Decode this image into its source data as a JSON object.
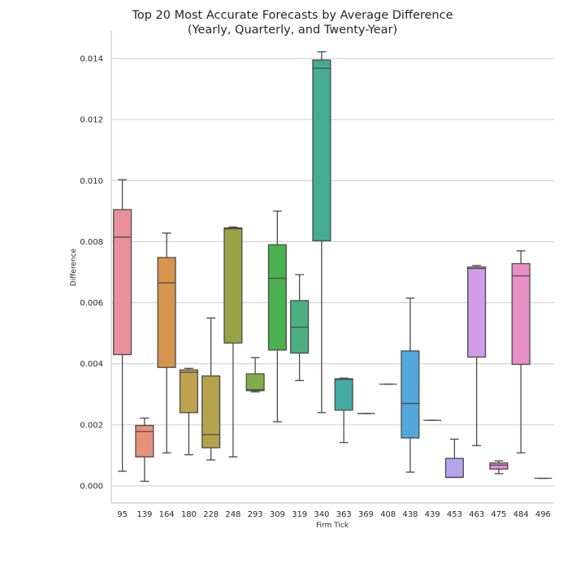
{
  "chart_data": {
    "type": "box",
    "title_lines": [
      "Top 20 Most Accurate Forecasts by Average Difference",
      "(Yearly, Quarterly, and Twenty-Year)"
    ],
    "xlabel": "Firm Tick",
    "ylabel": "Difference",
    "ylim": [
      -0.0006,
      0.0149
    ],
    "yticks": [
      0.0,
      0.002,
      0.004,
      0.006,
      0.008,
      0.01,
      0.012,
      0.014
    ],
    "ytick_labels": [
      "0.000",
      "0.002",
      "0.004",
      "0.006",
      "0.008",
      "0.010",
      "0.012",
      "0.014"
    ],
    "grid": "horizontal",
    "categories": [
      "95",
      "139",
      "164",
      "180",
      "228",
      "248",
      "293",
      "309",
      "319",
      "340",
      "363",
      "369",
      "408",
      "438",
      "439",
      "453",
      "463",
      "475",
      "484",
      "496"
    ],
    "boxes": [
      {
        "whislo": 0.00048,
        "q1": 0.0043,
        "med": 0.00815,
        "q3": 0.00905,
        "whishi": 0.01003,
        "color": "#e8919c"
      },
      {
        "whislo": 0.00015,
        "q1": 0.00095,
        "med": 0.00178,
        "q3": 0.00198,
        "whishi": 0.00222,
        "color": "#e8917a"
      },
      {
        "whislo": 0.00108,
        "q1": 0.00388,
        "med": 0.00665,
        "q3": 0.00748,
        "whishi": 0.00828,
        "color": "#d6944c"
      },
      {
        "whislo": 0.00102,
        "q1": 0.0024,
        "med": 0.00372,
        "q3": 0.0038,
        "whishi": 0.00385,
        "color": "#bea24f"
      },
      {
        "whislo": 0.00085,
        "q1": 0.00125,
        "med": 0.00168,
        "q3": 0.0036,
        "whishi": 0.0055,
        "color": "#b4a34b"
      },
      {
        "whislo": 0.00095,
        "q1": 0.00468,
        "med": 0.00842,
        "q3": 0.00845,
        "whishi": 0.00848,
        "color": "#97a445"
      },
      {
        "whislo": 0.00308,
        "q1": 0.00312,
        "med": 0.00315,
        "q3": 0.00367,
        "whishi": 0.0042,
        "color": "#7fae46"
      },
      {
        "whislo": 0.0021,
        "q1": 0.00445,
        "med": 0.0068,
        "q3": 0.0079,
        "whishi": 0.009,
        "color": "#4bb04f"
      },
      {
        "whislo": 0.00345,
        "q1": 0.00435,
        "med": 0.0052,
        "q3": 0.00607,
        "whishi": 0.00692,
        "color": "#4bb07e"
      },
      {
        "whislo": 0.0024,
        "q1": 0.00803,
        "med": 0.01368,
        "q3": 0.01395,
        "whishi": 0.01422,
        "color": "#44ad91"
      },
      {
        "whislo": 0.00142,
        "q1": 0.00248,
        "med": 0.00349,
        "q3": 0.00351,
        "whishi": 0.00353,
        "color": "#45aba2"
      },
      {
        "whislo": 0.00237,
        "q1": 0.00237,
        "med": 0.00237,
        "q3": 0.00237,
        "whishi": 0.00237,
        "color": "#42aab5"
      },
      {
        "whislo": 0.00333,
        "q1": 0.00333,
        "med": 0.00333,
        "q3": 0.00333,
        "whishi": 0.00333,
        "color": "#46a8c4"
      },
      {
        "whislo": 0.00045,
        "q1": 0.00157,
        "med": 0.0027,
        "q3": 0.00442,
        "whishi": 0.00615,
        "color": "#52a8dd"
      },
      {
        "whislo": 0.00215,
        "q1": 0.00215,
        "med": 0.00215,
        "q3": 0.00215,
        "whishi": 0.00215,
        "color": "#8fa5e6"
      },
      {
        "whislo": 0.00028,
        "q1": 0.00028,
        "med": 0.00028,
        "q3": 0.0009,
        "whishi": 0.00153,
        "color": "#b3a4ec"
      },
      {
        "whislo": 0.00132,
        "q1": 0.00422,
        "med": 0.00712,
        "q3": 0.00717,
        "whishi": 0.00722,
        "color": "#d29be8"
      },
      {
        "whislo": 0.0004,
        "q1": 0.00055,
        "med": 0.00068,
        "q3": 0.00075,
        "whishi": 0.00082,
        "color": "#e890d9"
      },
      {
        "whislo": 0.00108,
        "q1": 0.00398,
        "med": 0.00688,
        "q3": 0.00728,
        "whishi": 0.0077,
        "color": "#e88fc6"
      },
      {
        "whislo": 0.00025,
        "q1": 0.00025,
        "med": 0.00025,
        "q3": 0.00025,
        "whishi": 0.00025,
        "color": "#e891b5"
      }
    ]
  }
}
